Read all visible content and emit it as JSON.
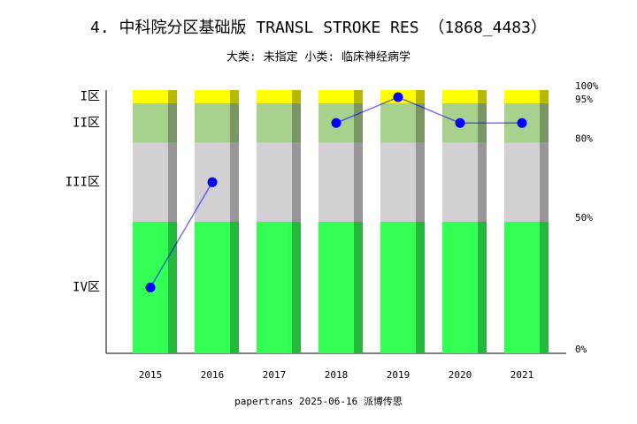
{
  "chart_data": {
    "type": "stacked_bar_line",
    "title": "4. 中科院分区基础版 TRANSL STROKE RES （1868_4483）",
    "subtitle": "大类: 未指定 小类: 临床神经病学",
    "footer": "papertrans 2025-06-16 派博传思",
    "categories": [
      "2015",
      "2016",
      "2017",
      "2018",
      "2019",
      "2020",
      "2021"
    ],
    "series": [
      {
        "name": "IV区",
        "color": "#33ff55",
        "values": [
          50,
          50,
          50,
          50,
          50,
          50,
          50
        ]
      },
      {
        "name": "III区",
        "color": "#d3d0d3",
        "values": [
          30,
          30,
          30,
          30,
          30,
          30,
          30
        ]
      },
      {
        "name": "II区",
        "color": "#a9d18e",
        "values": [
          15,
          15,
          15,
          15,
          15,
          15,
          15
        ]
      },
      {
        "name": "I区",
        "color": "#ffff00",
        "values": [
          5,
          5,
          5,
          5,
          5,
          5,
          5
        ]
      }
    ],
    "line": {
      "color": "#0000ff",
      "values": [
        25,
        65,
        null,
        87.5,
        97.3,
        87.5,
        87.5
      ]
    },
    "ylim": [
      0,
      100
    ],
    "yticks": [
      {
        "value": 0,
        "label": "0%"
      },
      {
        "value": 50,
        "label": "50%"
      },
      {
        "value": 80,
        "label": "80%"
      },
      {
        "value": 95,
        "label": "95%"
      },
      {
        "value": 100,
        "label": "100%"
      }
    ]
  }
}
